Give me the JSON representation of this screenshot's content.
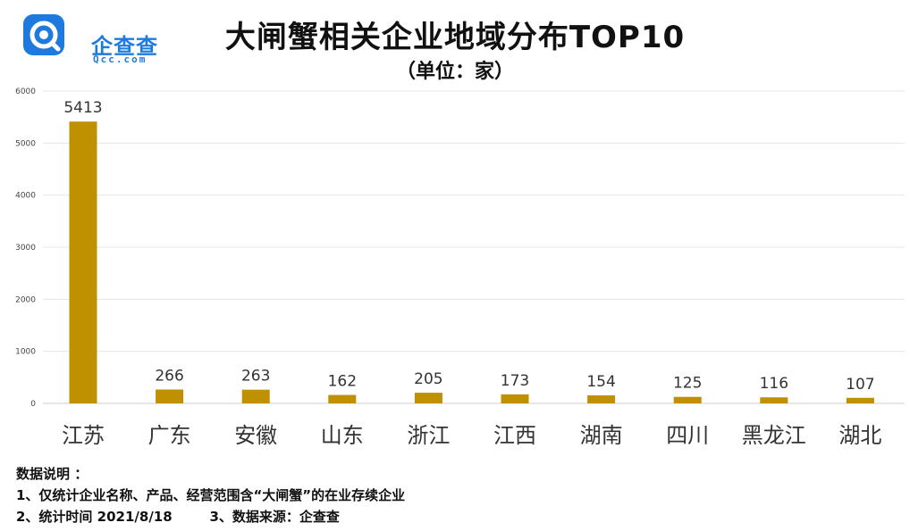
{
  "brand": {
    "name": "企查查",
    "domain": "Qcc.com",
    "color": "#1f7ae0"
  },
  "header": {
    "title": "大闸蟹相关企业地域分布TOP10",
    "subtitle": "（单位：家）"
  },
  "chart_data": {
    "type": "bar",
    "title": "大闸蟹相关企业地域分布TOP10",
    "subtitle": "（单位：家）",
    "xlabel": "",
    "ylabel": "",
    "categories": [
      "江苏",
      "广东",
      "安徽",
      "山东",
      "浙江",
      "江西",
      "湖南",
      "四川",
      "黑龙江",
      "湖北"
    ],
    "values": [
      5413,
      266,
      263,
      162,
      205,
      173,
      154,
      125,
      116,
      107
    ],
    "ylim": [
      0,
      6000
    ],
    "yticks": [
      0,
      1000,
      2000,
      3000,
      4000,
      5000,
      6000
    ],
    "grid": true,
    "legend": "none",
    "bar_color": "#bf9000"
  },
  "notes": {
    "heading": "数据说明 ：",
    "line1": "1、仅统计企业名称、产品、经营范围含“大闸蟹”的在业存续企业",
    "line2": "2、统计时间 2021/8/18",
    "line3": "3、数据来源：企查查"
  }
}
